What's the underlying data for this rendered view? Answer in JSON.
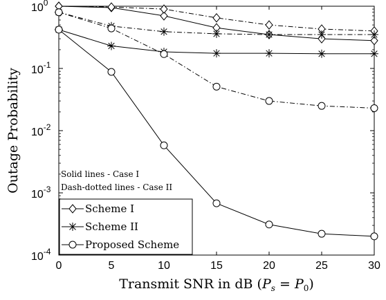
{
  "chart_data": {
    "type": "line",
    "xlabel": "Transmit SNR in dB (",
    "xlabel_math": "P",
    "xlabel_sub1": "s",
    "xlabel_eq": " = ",
    "xlabel_sub2": "0",
    "xlabel_close": ")",
    "ylabel": "Outage Probability",
    "x_scale": "linear",
    "y_scale": "log",
    "xlim": [
      0,
      30
    ],
    "ylim": [
      0.0001,
      1
    ],
    "x_ticks": [
      0,
      5,
      10,
      15,
      20,
      25,
      30
    ],
    "y_ticks": [
      {
        "value": 0.0001,
        "mantissa": "10",
        "exponent": "-4"
      },
      {
        "value": 0.001,
        "mantissa": "10",
        "exponent": "-3"
      },
      {
        "value": 0.01,
        "mantissa": "10",
        "exponent": "-2"
      },
      {
        "value": 0.1,
        "mantissa": "10",
        "exponent": "-1"
      },
      {
        "value": 1,
        "mantissa": "10",
        "exponent": "0"
      }
    ],
    "grid": false,
    "annotations": [
      "Solid lines - Case I",
      "Dash-dotted lines - Case II"
    ],
    "legend": {
      "placement": "bottom-left",
      "entries": [
        "Scheme I",
        "Scheme II",
        "Proposed Scheme"
      ]
    },
    "x": [
      0,
      5,
      10,
      15,
      20,
      25,
      30
    ],
    "series": [
      {
        "scheme": "Scheme I",
        "case": "Case I",
        "line": "solid",
        "marker": "diamond",
        "values": [
          1.0,
          0.95,
          0.7,
          0.45,
          0.35,
          0.3,
          0.28
        ]
      },
      {
        "scheme": "Scheme I",
        "case": "Case II",
        "line": "dashdot",
        "marker": "diamond",
        "values": [
          1.0,
          0.97,
          0.9,
          0.65,
          0.5,
          0.43,
          0.4
        ]
      },
      {
        "scheme": "Scheme II",
        "case": "Case I",
        "line": "solid",
        "marker": "star",
        "values": [
          0.42,
          0.23,
          0.185,
          0.175,
          0.175,
          0.172,
          0.172
        ]
      },
      {
        "scheme": "Scheme II",
        "case": "Case II",
        "line": "dashdot",
        "marker": "star",
        "values": [
          0.8,
          0.48,
          0.39,
          0.36,
          0.35,
          0.35,
          0.35
        ]
      },
      {
        "scheme": "Proposed Scheme",
        "case": "Case I",
        "line": "solid",
        "marker": "circle",
        "values": [
          0.42,
          0.088,
          0.0058,
          0.00068,
          0.00031,
          0.00022,
          0.0002
        ]
      },
      {
        "scheme": "Proposed Scheme",
        "case": "Case II",
        "line": "dashdot",
        "marker": "circle",
        "values": [
          0.8,
          0.44,
          0.17,
          0.051,
          0.03,
          0.025,
          0.023
        ]
      }
    ]
  }
}
